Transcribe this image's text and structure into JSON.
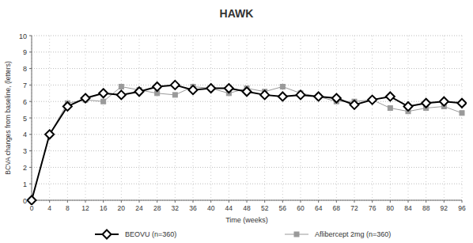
{
  "chart_data": {
    "type": "line",
    "title": "HAWK",
    "x_label": "Time (weeks)",
    "y_label": "BCVA changes from baseline, (letters)",
    "x": [
      0,
      4,
      8,
      12,
      16,
      20,
      24,
      28,
      32,
      36,
      40,
      44,
      48,
      52,
      56,
      60,
      64,
      68,
      72,
      76,
      80,
      84,
      88,
      92,
      96
    ],
    "series": [
      {
        "name": "BEOVU (n=360)",
        "color": "#000000",
        "marker": "diamond",
        "line_style": "solid",
        "values": [
          0,
          4.0,
          5.7,
          6.2,
          6.5,
          6.4,
          6.6,
          6.9,
          7.0,
          6.7,
          6.8,
          6.8,
          6.6,
          6.4,
          6.3,
          6.4,
          6.3,
          6.2,
          5.8,
          6.1,
          6.3,
          5.7,
          5.9,
          6.0,
          5.9
        ]
      },
      {
        "name": "Aflibercept 2mg (n=360)",
        "color": "#9a9a9a",
        "marker": "square",
        "line_style": "solid",
        "values": [
          0,
          4.0,
          5.9,
          6.1,
          6.0,
          6.9,
          6.7,
          6.5,
          6.4,
          6.9,
          6.8,
          6.5,
          6.8,
          6.6,
          6.9,
          6.5,
          6.3,
          6.0,
          6.0,
          6.1,
          5.6,
          5.4,
          5.6,
          5.7,
          5.3
        ]
      }
    ],
    "xlim": [
      0,
      96
    ],
    "xticks": [
      0,
      4,
      8,
      12,
      16,
      20,
      24,
      28,
      32,
      36,
      40,
      44,
      48,
      52,
      56,
      60,
      64,
      68,
      72,
      76,
      80,
      84,
      88,
      92,
      96
    ],
    "ylim": [
      0,
      10
    ],
    "yticks": [
      0,
      1,
      2,
      3,
      4,
      5,
      6,
      7,
      8,
      9,
      10
    ],
    "grid": true,
    "legend": "bottom"
  }
}
